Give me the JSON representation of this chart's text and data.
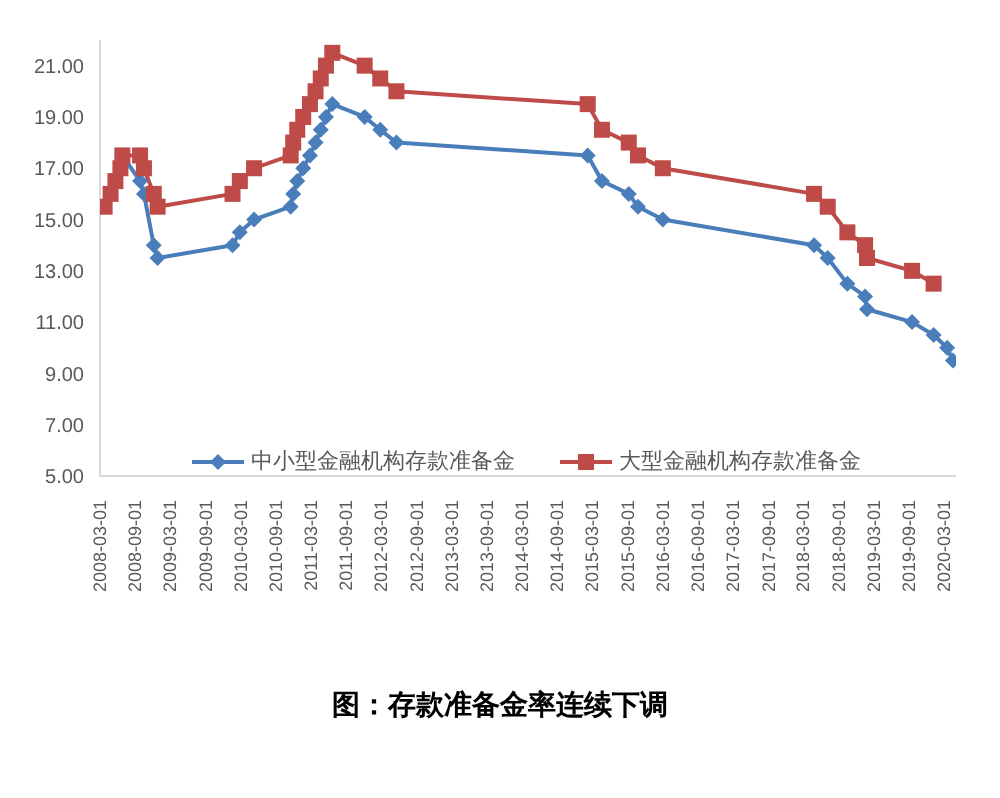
{
  "chart_data": {
    "type": "line",
    "title": "图：存款准备金率连续下调",
    "xlim": [
      "2008-03-01",
      "2020-05-01"
    ],
    "xticks": [
      "2008-03-01",
      "2008-09-01",
      "2009-03-01",
      "2009-09-01",
      "2010-03-01",
      "2010-09-01",
      "2011-03-01",
      "2011-09-01",
      "2012-03-01",
      "2012-09-01",
      "2013-03-01",
      "2013-09-01",
      "2014-03-01",
      "2014-09-01",
      "2015-03-01",
      "2015-09-01",
      "2016-03-01",
      "2016-09-01",
      "2017-03-01",
      "2017-09-01",
      "2018-03-01",
      "2018-09-01",
      "2019-03-01",
      "2019-09-01",
      "2020-03-01"
    ],
    "ylim": [
      5,
      22
    ],
    "yticks": [
      {
        "value": 5,
        "label": "5.00"
      },
      {
        "value": 7,
        "label": "7.00"
      },
      {
        "value": 9,
        "label": "9.00"
      },
      {
        "value": 11,
        "label": "11.00"
      },
      {
        "value": 13,
        "label": "13.00"
      },
      {
        "value": 15,
        "label": "15.00"
      },
      {
        "value": 17,
        "label": "17.00"
      },
      {
        "value": 19,
        "label": "19.00"
      },
      {
        "value": 21,
        "label": "21.00"
      }
    ],
    "grid": false,
    "legend": "bottom",
    "series": [
      {
        "name": "中小型金融机构存款准备金",
        "color": "#4a7ebb",
        "marker": "diamond",
        "x": [
          "2008-06-15",
          "2008-06-25",
          "2008-09-25",
          "2008-10-15",
          "2008-12-05",
          "2008-12-25",
          "2010-01-18",
          "2010-02-25",
          "2010-05-10",
          "2010-11-16",
          "2010-11-29",
          "2010-12-20",
          "2011-01-20",
          "2011-02-24",
          "2011-03-25",
          "2011-04-21",
          "2011-05-18",
          "2011-06-20",
          "2011-12-05",
          "2012-02-24",
          "2012-05-18",
          "2015-02-05",
          "2015-04-20",
          "2015-09-06",
          "2015-10-24",
          "2016-03-01",
          "2018-04-25",
          "2018-07-05",
          "2018-10-15",
          "2019-01-15",
          "2019-01-25",
          "2019-09-16",
          "2020-01-06",
          "2020-03-16",
          "2020-04-15"
        ],
        "values": [
          17,
          17.5,
          16.5,
          16,
          14,
          13.5,
          14,
          14.5,
          15,
          15.5,
          16,
          16.5,
          17,
          17.5,
          18,
          18.5,
          19,
          19.5,
          19,
          18.5,
          18,
          17.5,
          16.5,
          16,
          15.5,
          15,
          14,
          13.5,
          12.5,
          12,
          11.5,
          11,
          10.5,
          10,
          9.5
        ]
      },
      {
        "name": "大型金融机构存款准备金",
        "color": "#be4b48",
        "marker": "square",
        "x": [
          "2008-03-25",
          "2008-04-25",
          "2008-05-20",
          "2008-06-15",
          "2008-06-25",
          "2008-09-25",
          "2008-10-15",
          "2008-12-05",
          "2008-12-25",
          "2010-01-18",
          "2010-02-25",
          "2010-05-10",
          "2010-11-16",
          "2010-11-29",
          "2010-12-20",
          "2011-01-20",
          "2011-02-24",
          "2011-03-25",
          "2011-04-21",
          "2011-05-18",
          "2011-06-20",
          "2011-12-05",
          "2012-02-24",
          "2012-05-18",
          "2015-02-05",
          "2015-04-20",
          "2015-09-06",
          "2015-10-24",
          "2016-03-01",
          "2018-04-25",
          "2018-07-05",
          "2018-10-15",
          "2019-01-15",
          "2019-01-25",
          "2019-09-16",
          "2020-01-06"
        ],
        "values": [
          15.5,
          16,
          16.5,
          17,
          17.5,
          17.5,
          17,
          16,
          15.5,
          16,
          16.5,
          17,
          17.5,
          18,
          18.5,
          19,
          19.5,
          20,
          20.5,
          21,
          21.5,
          21,
          20.5,
          20,
          19.5,
          18.5,
          18,
          17.5,
          17,
          16,
          15.5,
          14.5,
          14,
          13.5,
          13,
          12.5
        ]
      }
    ]
  }
}
